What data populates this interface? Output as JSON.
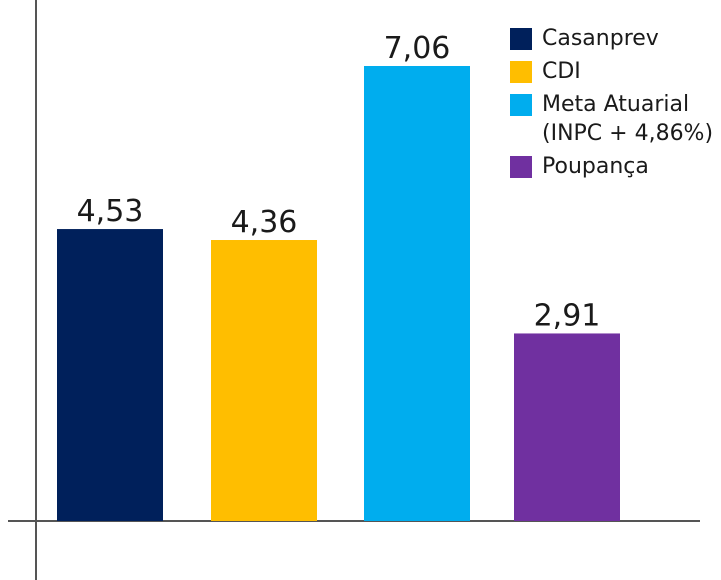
{
  "chart_data": {
    "type": "bar",
    "categories": [
      "Casanprev",
      "CDI",
      "Meta Atuarial\n(INPC + 4,86%)",
      "Poupança"
    ],
    "values": [
      4.53,
      4.36,
      7.06,
      2.91
    ],
    "value_labels": [
      "4,53",
      "4,36",
      "7,06",
      "2,91"
    ],
    "colors": [
      "#00205b",
      "#ffbe00",
      "#00adee",
      "#7030a0"
    ],
    "title": "",
    "xlabel": "",
    "ylabel": "",
    "ylim": [
      0,
      7.06
    ],
    "grid": false,
    "legend_position": "top-right"
  },
  "legend": {
    "items": [
      {
        "label": "Casanprev",
        "color": "#00205b"
      },
      {
        "label": "CDI",
        "color": "#ffbe00"
      },
      {
        "label": "Meta Atuarial\n(INPC + 4,86%)",
        "color": "#00adee"
      },
      {
        "label": "Poupança",
        "color": "#7030a0"
      }
    ]
  },
  "axis_color": "#555555"
}
